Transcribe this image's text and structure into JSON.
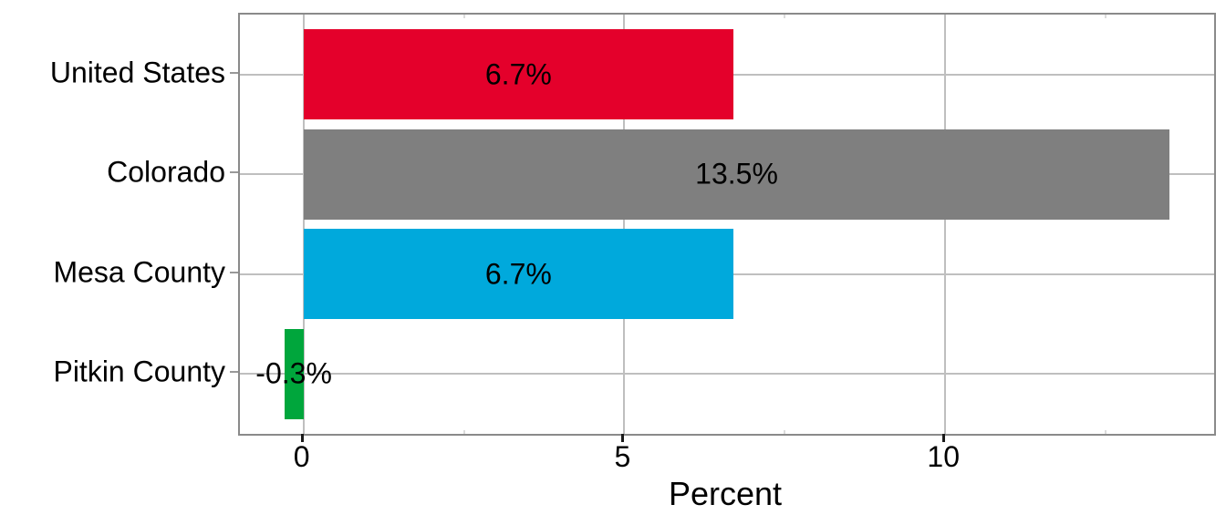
{
  "chart_data": {
    "type": "bar",
    "orientation": "horizontal",
    "title": "",
    "xlabel": "Percent",
    "ylabel": "",
    "categories": [
      "United States",
      "Colorado",
      "Mesa County",
      "Pitkin County"
    ],
    "values": [
      6.7,
      13.5,
      6.7,
      -0.3
    ],
    "bar_labels": [
      "6.7%",
      "13.5%",
      "6.7%",
      "-0.3%"
    ],
    "bar_colors": [
      "#E4002B",
      "#7F7F7F",
      "#00A9DC",
      "#00A63C"
    ],
    "xlim": [
      -0.99,
      14.19
    ],
    "x_major_ticks": [
      0,
      5,
      10
    ],
    "x_major_tick_labels": [
      "0",
      "5",
      "10"
    ],
    "x_minor_ticks": [
      2.5,
      7.5,
      12.5
    ],
    "bar_width_fraction": 0.9,
    "grid": "major vertical at x ticks, horizontal at category centers",
    "legend": "none",
    "colors": {
      "background": "#FFFFFF",
      "panel_border": "#8A8A8A",
      "gridline": "#BFBFBF",
      "major_tick": "#1A1A1A",
      "category_tick": "#999999",
      "text": "#000000"
    }
  }
}
